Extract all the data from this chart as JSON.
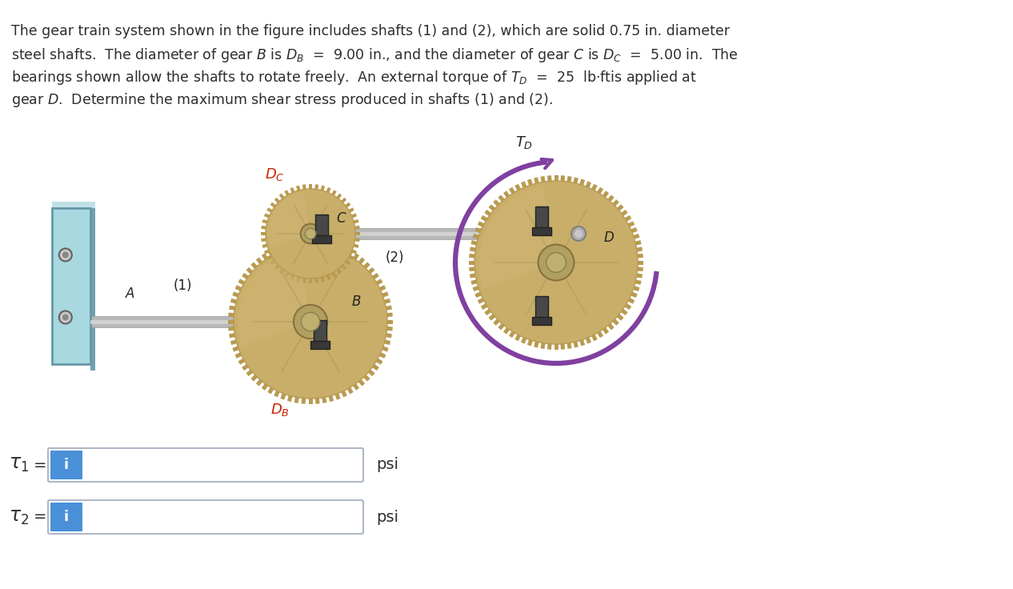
{
  "background_color": "#ffffff",
  "text_color": "#2d2d2d",
  "text_lines": [
    "The gear train system shown in the figure includes shafts (1) and (2), which are solid 0.75 in. diameter",
    "steel shafts.  The diameter of gear $B$ is $D_B$  =  9.00 in., and the diameter of gear $C$ is $D_C$  =  5.00 in.  The",
    "bearings shown allow the shafts to rotate freely.  An external torque of $T_D$  =  25  lb·ftis applied at",
    "gear $D$.  Determine the maximum shear stress produced in shafts (1) and (2)."
  ],
  "input_box_color": "#4a90d9",
  "input_field_bg": "#ffffff",
  "input_field_border": "#b0b8c8",
  "tau1_label": "$\\tau_1$",
  "tau2_label": "$\\tau_2$",
  "psi_label": "psi",
  "label_A": "$A$",
  "label_B": "$B$",
  "label_C": "$C$",
  "label_D": "$D$",
  "label_DB": "$D_B$",
  "label_DC": "$D_C$",
  "label_TD": "$T_D$",
  "label_1": "(1)",
  "label_2": "(2)",
  "db_color": "#cc2200",
  "dc_color": "#cc2200",
  "gear_color_light": "#d4bc7a",
  "gear_color_mid": "#c8ae68",
  "gear_color_dark": "#b89a50",
  "shaft_color_light": "#d8d8d8",
  "shaft_color_mid": "#b8b8b8",
  "shaft_color_dark": "#989898",
  "wall_color_light": "#a8d8e0",
  "wall_color_mid": "#88bcc8",
  "wall_color_dark": "#6898a8",
  "arrow_color": "#8040a0",
  "bearing_color": "#303030",
  "black_label": "#222222",
  "label_fontsize": 12,
  "text_fontsize": 12.5
}
